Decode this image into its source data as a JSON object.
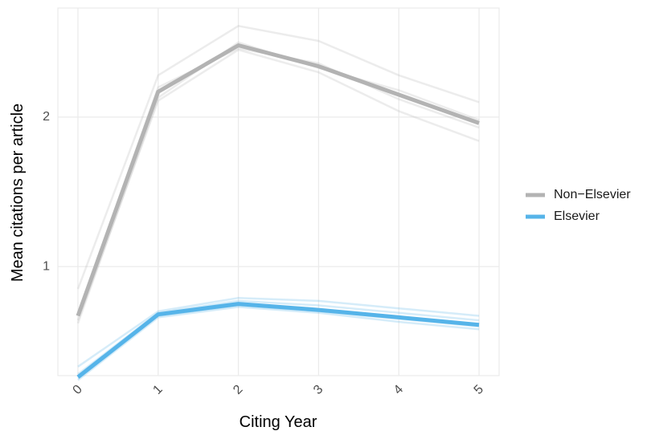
{
  "chart_data": {
    "type": "line",
    "xlabel": "Citing Year",
    "ylabel": "Mean citations per article",
    "x": [
      0,
      1,
      2,
      3,
      4,
      5
    ],
    "x_tick_labels": [
      "0",
      "1",
      "2",
      "3",
      "4",
      "5"
    ],
    "y_ticks": [
      1,
      2
    ],
    "y_tick_labels": [
      "1",
      "2"
    ],
    "xlim": [
      -0.25,
      5.25
    ],
    "ylim": [
      0.27,
      2.73
    ],
    "grid": true,
    "legend_position": "right",
    "series": [
      {
        "name": "Non−Elsevier",
        "color": "#b3b3b3",
        "values": [
          0.67,
          2.17,
          2.48,
          2.34,
          2.15,
          1.96
        ],
        "replicates": [
          [
            0.85,
            2.28,
            2.61,
            2.51,
            2.28,
            2.1
          ],
          [
            0.64,
            2.11,
            2.45,
            2.3,
            2.04,
            1.84
          ],
          [
            0.62,
            2.13,
            2.5,
            2.33,
            2.18,
            1.98
          ],
          [
            0.68,
            2.2,
            2.46,
            2.36,
            2.12,
            1.93
          ]
        ]
      },
      {
        "name": "Elsevier",
        "color": "#56b4e9",
        "values": [
          0.26,
          0.68,
          0.75,
          0.71,
          0.66,
          0.61
        ],
        "replicates": [
          [
            0.33,
            0.7,
            0.79,
            0.77,
            0.72,
            0.67
          ],
          [
            0.24,
            0.66,
            0.73,
            0.69,
            0.63,
            0.58
          ],
          [
            0.28,
            0.69,
            0.77,
            0.74,
            0.69,
            0.64
          ],
          [
            0.25,
            0.67,
            0.74,
            0.7,
            0.65,
            0.6
          ]
        ]
      }
    ]
  }
}
